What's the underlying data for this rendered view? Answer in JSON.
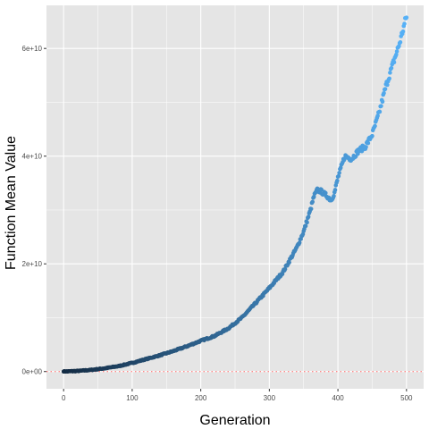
{
  "chart_data": {
    "type": "scatter",
    "title": "",
    "xlabel": "Generation",
    "ylabel": "Function Mean Value",
    "xlim": [
      -25,
      525
    ],
    "ylim": [
      -3200000000.0,
      68000000000.0
    ],
    "x_ticks": [
      0,
      100,
      200,
      300,
      400,
      500
    ],
    "x_tick_labels": [
      "0",
      "100",
      "200",
      "300",
      "400",
      "500"
    ],
    "y_ticks": [
      0,
      20000000000,
      40000000000,
      60000000000
    ],
    "y_tick_labels": [
      "0e+00",
      "2e+10",
      "4e+10",
      "6e+10"
    ],
    "reference_line": {
      "y": 0,
      "style": "dotted",
      "color": "#ff6666"
    },
    "grid": true,
    "legend": "none",
    "colors": {
      "panel_background": "#e5e5e5",
      "grid_major": "#ffffff",
      "point_low": "#132b43",
      "point_high": "#56b1f7"
    },
    "color_scale": {
      "variable": "Generation",
      "range": [
        0,
        500
      ]
    },
    "anchors": {
      "x": [
        0,
        20,
        40,
        60,
        80,
        100,
        120,
        140,
        160,
        180,
        200,
        220,
        240,
        260,
        280,
        300,
        320,
        340,
        350,
        360,
        365,
        370,
        375,
        380,
        385,
        390,
        395,
        400,
        405,
        410,
        420,
        430,
        440,
        450,
        460,
        470,
        480,
        490,
        500
      ],
      "y": [
        0,
        100000000,
        300000000,
        600000000,
        1000000000,
        1600000000,
        2300000000,
        3000000000,
        3800000000,
        4700000000,
        5700000000,
        6600000000,
        8000000000,
        10000000000,
        12700000000,
        15500000000,
        18500000000,
        23000000000,
        26000000000,
        30000000000,
        32500000000,
        33700000000,
        33500000000,
        33000000000,
        32500000000,
        31800000000,
        33200000000,
        36000000000,
        38000000000,
        40000000000,
        39500000000,
        41000000000,
        41800000000,
        44000000000,
        48000000000,
        53000000000,
        57000000000,
        61000000000,
        66000000000
      ]
    }
  }
}
